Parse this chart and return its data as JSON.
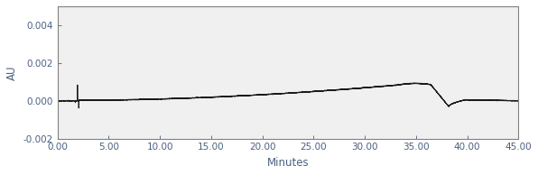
{
  "xlim": [
    0,
    45
  ],
  "ylim": [
    -0.002,
    0.005
  ],
  "xlabel": "Minutes",
  "ylabel": "AU",
  "xticks": [
    0.0,
    5.0,
    10.0,
    15.0,
    20.0,
    25.0,
    30.0,
    35.0,
    40.0,
    45.0
  ],
  "yticks": [
    -0.002,
    0.0,
    0.002,
    0.004
  ],
  "line_color": "#1a1a1a",
  "bg_color": "#ffffff",
  "plot_bg_color": "#f0f0f0",
  "tick_label_fontsize": 7.5,
  "axis_label_fontsize": 8.5,
  "tick_color": "#4a6080"
}
